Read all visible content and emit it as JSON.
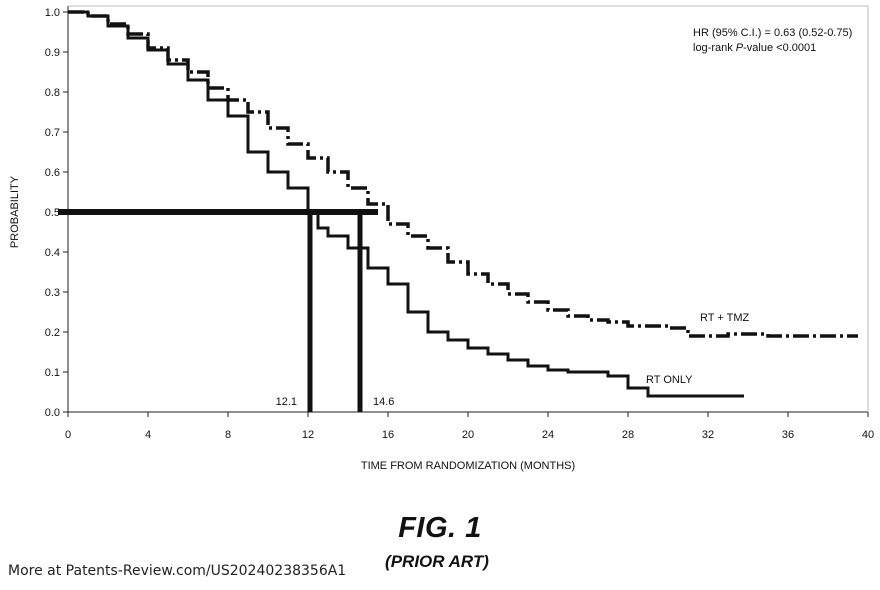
{
  "chart_data": {
    "type": "line",
    "xlabel": "TIME FROM RANDOMIZATION (MONTHS)",
    "ylabel": "PROBABILITY",
    "xlim": [
      0,
      40
    ],
    "ylim": [
      0,
      1.0
    ],
    "xticks": [
      0,
      4,
      8,
      12,
      16,
      20,
      24,
      28,
      32,
      36,
      40
    ],
    "yticks": [
      "0.0",
      "0.1",
      "0.2",
      "0.3",
      "0.4",
      "0.5",
      "0.6",
      "0.7",
      "0.8",
      "0.9",
      "1.0"
    ],
    "grid": false,
    "annotation": {
      "line1": "HR (95% C.I.) = 0.63 (0.52-0.75)",
      "line2_prefix": "log-rank ",
      "line2_italic": "P",
      "line2_suffix": "-value <0.0001"
    },
    "median_line": {
      "y": 0.5,
      "x_end": 15.5
    },
    "medians": [
      {
        "label": "12.1",
        "x": 12.1
      },
      {
        "label": "14.6",
        "x": 14.6
      }
    ],
    "series": [
      {
        "name": "RT + TMZ",
        "style": "dashed",
        "x": [
          0,
          1,
          2,
          3,
          4,
          5,
          6,
          7,
          8,
          9,
          10,
          11,
          12,
          13,
          14,
          15,
          16,
          17,
          18,
          19,
          20,
          21,
          22,
          23,
          24,
          25,
          26,
          27,
          28,
          29,
          30,
          31,
          32,
          33,
          35,
          37,
          39.5
        ],
        "y": [
          1.0,
          0.99,
          0.97,
          0.945,
          0.91,
          0.88,
          0.85,
          0.81,
          0.78,
          0.75,
          0.71,
          0.67,
          0.635,
          0.6,
          0.56,
          0.52,
          0.47,
          0.44,
          0.41,
          0.375,
          0.345,
          0.32,
          0.295,
          0.275,
          0.255,
          0.24,
          0.23,
          0.225,
          0.215,
          0.215,
          0.21,
          0.19,
          0.19,
          0.195,
          0.19,
          0.19,
          0.19
        ]
      },
      {
        "name": "RT ONLY",
        "style": "solid",
        "x": [
          0,
          1,
          2,
          3,
          4,
          5,
          6,
          7,
          8,
          9,
          10,
          11,
          12,
          12.5,
          13,
          14,
          15,
          16,
          17,
          18,
          19,
          20,
          21,
          22,
          23,
          24,
          25,
          26,
          27,
          28,
          29,
          30,
          31,
          32,
          33.8
        ],
        "y": [
          1.0,
          0.99,
          0.965,
          0.935,
          0.905,
          0.87,
          0.83,
          0.78,
          0.74,
          0.65,
          0.6,
          0.56,
          0.5,
          0.46,
          0.44,
          0.41,
          0.36,
          0.32,
          0.25,
          0.2,
          0.18,
          0.16,
          0.145,
          0.13,
          0.115,
          0.105,
          0.1,
          0.1,
          0.09,
          0.06,
          0.04,
          0.04,
          0.04,
          0.04,
          0.04
        ]
      }
    ],
    "series_labels": [
      "RT + TMZ",
      "RT ONLY"
    ]
  },
  "figure": {
    "title": "FIG. 1",
    "subtitle": "(PRIOR ART)"
  },
  "footer": {
    "text": "More at Patents-Review.com/US20240238356A1"
  }
}
